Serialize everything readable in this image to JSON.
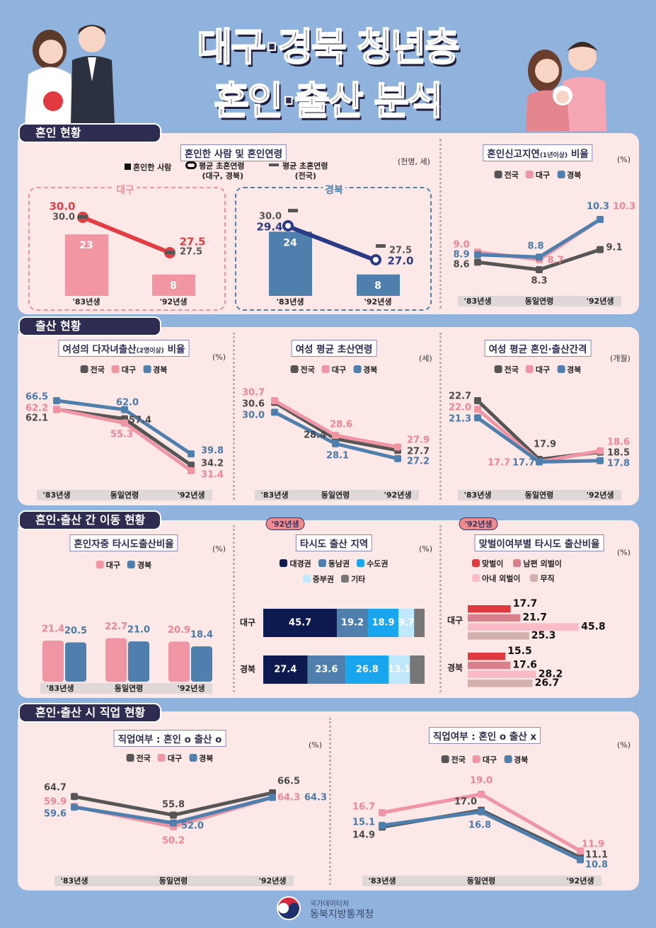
{
  "header": {
    "title_line1": "대구·경북 청년층",
    "title_line2": "혼인·출산 분석"
  },
  "sections": [
    "혼인 현황",
    "출산 현황",
    "혼인·출산 간 이동 현황",
    "혼인·출산 시 직업 현황"
  ],
  "badges": [
    "'92년생",
    "'92년생"
  ],
  "footer": {
    "org_top": "국가데이터처",
    "org_name": "동북지방통계청"
  },
  "colors": {
    "national": "#565656",
    "daegu": "#f095a3",
    "gyeongbuk": "#4f7fac",
    "section": "#2f2c52",
    "panel": "#fce9e7",
    "background": "#8fb3dd"
  },
  "icons": [
    "bride-groom-illustration",
    "family-illustration",
    "government-emblem"
  ],
  "chart_data": [
    {
      "type": "bar+line",
      "title": "혼인한 사람 및 혼인연령",
      "unit": "(천명, 세)",
      "legend": {
        "bar": "혼인한 사람",
        "line": "평균 초혼연령",
        "line_sub": "(대구, 경북)",
        "nat": "평균 초혼연령",
        "nat_sub": "(전국)"
      },
      "panels": [
        {
          "name": "대구",
          "categories": [
            "'83년생",
            "'92년생"
          ],
          "bars": [
            23,
            8
          ],
          "line": [
            30.0,
            27.5
          ],
          "national": [
            30.0,
            27.5
          ]
        },
        {
          "name": "경북",
          "categories": [
            "'83년생",
            "'92년생"
          ],
          "bars": [
            24,
            8
          ],
          "line": [
            29.4,
            27.0
          ],
          "national": [
            30.0,
            27.5
          ]
        }
      ]
    },
    {
      "type": "line",
      "title": "혼인신고지연",
      "title_sub": "(1년이상)",
      "title_end": " 비율",
      "unit": "(%)",
      "categories": [
        "'83년생",
        "동일연령",
        "'92년생"
      ],
      "series": [
        {
          "name": "전국",
          "values": [
            8.6,
            8.3,
            9.1
          ]
        },
        {
          "name": "대구",
          "values": [
            9.0,
            8.7,
            10.3
          ]
        },
        {
          "name": "경북",
          "values": [
            8.9,
            8.8,
            10.3
          ]
        }
      ]
    },
    {
      "type": "line",
      "title": "여성의 다자녀출산",
      "title_sub": "(2명이상)",
      "title_end": " 비율",
      "unit": "(%)",
      "categories": [
        "'83년생",
        "동일연령",
        "'92년생"
      ],
      "series": [
        {
          "name": "전국",
          "values": [
            62.1,
            57.4,
            34.2
          ]
        },
        {
          "name": "대구",
          "values": [
            62.2,
            55.3,
            31.4
          ]
        },
        {
          "name": "경북",
          "values": [
            66.5,
            62.0,
            39.8
          ]
        }
      ]
    },
    {
      "type": "line",
      "title": "여성 평균 초산연령",
      "title_sub": "",
      "title_end": "",
      "unit": "(세)",
      "categories": [
        "'83년생",
        "동일연령",
        "'92년생"
      ],
      "series": [
        {
          "name": "전국",
          "values": [
            30.6,
            28.4,
            27.7
          ]
        },
        {
          "name": "대구",
          "values": [
            30.7,
            28.6,
            27.9
          ]
        },
        {
          "name": "경북",
          "values": [
            30.0,
            28.1,
            27.2
          ]
        }
      ]
    },
    {
      "type": "line",
      "title": "여성 평균 혼인·출산간격",
      "title_sub": "",
      "title_end": "",
      "unit": "(개월)",
      "categories": [
        "'83년생",
        "동일연령",
        "'92년생"
      ],
      "series": [
        {
          "name": "전국",
          "values": [
            22.7,
            17.9,
            18.5
          ]
        },
        {
          "name": "대구",
          "values": [
            22.0,
            17.7,
            18.6
          ]
        },
        {
          "name": "경북",
          "values": [
            21.3,
            17.7,
            17.8
          ]
        }
      ]
    },
    {
      "type": "bar",
      "title": "혼인자중 타시도출산비율",
      "unit": "(%)",
      "categories": [
        "'83년생",
        "동일연령",
        "'92년생"
      ],
      "series": [
        {
          "name": "대구",
          "values": [
            21.4,
            22.7,
            20.9
          ]
        },
        {
          "name": "경북",
          "values": [
            20.5,
            21.0,
            18.4
          ]
        }
      ]
    },
    {
      "type": "stacked-bar",
      "title": "타시도 출산 지역",
      "unit": "(%)",
      "categories": [
        "대구",
        "경북"
      ],
      "series": [
        {
          "name": "대경권",
          "color": "#0c1a4f",
          "values": [
            45.7,
            27.4
          ]
        },
        {
          "name": "동남권",
          "color": "#4f7fac",
          "values": [
            19.2,
            23.6
          ]
        },
        {
          "name": "수도권",
          "color": "#1aa6ef",
          "values": [
            18.9,
            26.8
          ]
        },
        {
          "name": "중부권",
          "color": "#bfe8fb",
          "values": [
            9.7,
            13.1
          ]
        },
        {
          "name": "기타",
          "color": "#777777",
          "values": [
            6.5,
            9.1
          ]
        }
      ]
    },
    {
      "type": "horizontal-bar",
      "title": "맞벌이여부별 타시도 출산비율",
      "unit": "(%)",
      "categories": [
        "대구",
        "경북"
      ],
      "series": [
        {
          "name": "맞벌이",
          "color": "#e0393f",
          "values": [
            17.7,
            15.5
          ]
        },
        {
          "name": "남편 외벌이",
          "color": "#d9808c",
          "values": [
            21.7,
            17.6
          ]
        },
        {
          "name": "아내 외벌이",
          "color": "#f9bcc6",
          "values": [
            45.8,
            28.2
          ]
        },
        {
          "name": "무직",
          "color": "#d4b0ad",
          "values": [
            25.3,
            26.7
          ]
        }
      ]
    },
    {
      "type": "line",
      "title": "직업여부 : 혼인 o  출산 o",
      "title_sub": "",
      "title_end": "",
      "unit": "(%)",
      "categories": [
        "'83년생",
        "동일연령",
        "'92년생"
      ],
      "series": [
        {
          "name": "전국",
          "values": [
            64.7,
            55.8,
            66.5
          ]
        },
        {
          "name": "대구",
          "values": [
            59.9,
            50.2,
            64.3
          ]
        },
        {
          "name": "경북",
          "values": [
            59.6,
            52.0,
            64.3
          ]
        }
      ]
    },
    {
      "type": "line",
      "title": "직업여부 : 혼인 o  출산 x",
      "title_sub": "",
      "title_end": "",
      "unit": "(%)",
      "categories": [
        "'83년생",
        "동일연령",
        "'92년생"
      ],
      "series": [
        {
          "name": "전국",
          "values": [
            14.9,
            17.0,
            11.1
          ]
        },
        {
          "name": "대구",
          "values": [
            16.7,
            19.0,
            11.9
          ]
        },
        {
          "name": "경북",
          "values": [
            15.1,
            16.8,
            10.8
          ]
        }
      ]
    }
  ]
}
